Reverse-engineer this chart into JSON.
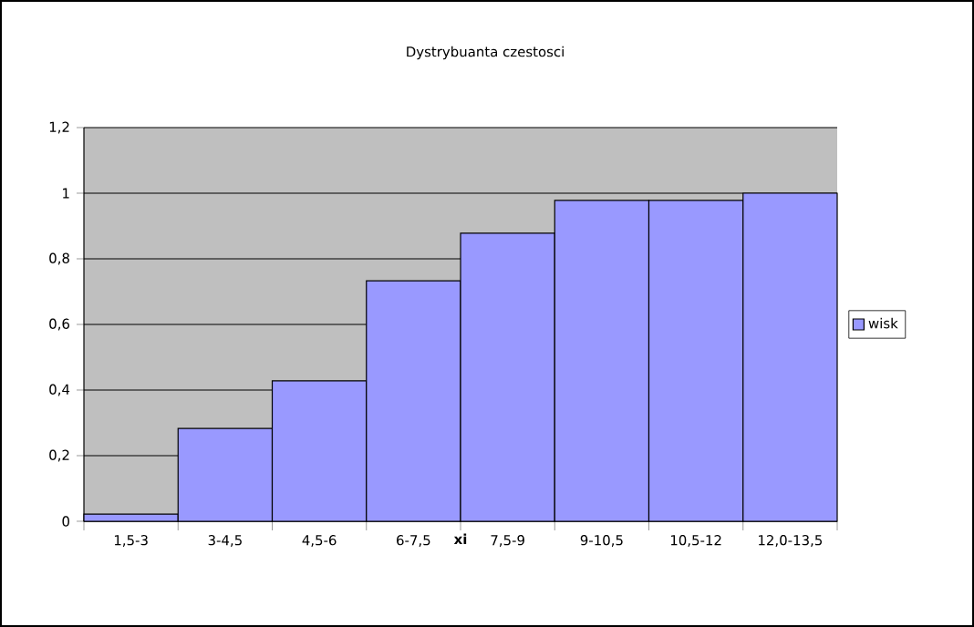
{
  "chart_data": {
    "type": "bar",
    "title": "Dystrybuanta czestosci",
    "xlabel": "xi",
    "categories": [
      "1,5-3",
      "3-4,5",
      "4,5-6",
      "6-7,5",
      "7,5-9",
      "9-10,5",
      "10,5-12",
      "12,0-13,5"
    ],
    "series": [
      {
        "name": "wisk",
        "color": "#9999ff",
        "values": [
          0.022,
          0.283,
          0.428,
          0.733,
          0.878,
          0.978,
          0.978,
          1.0
        ]
      }
    ],
    "ylim": [
      0,
      1.2
    ],
    "yticks": [
      0,
      {
        "value": 0.2,
        "label": "0,2"
      },
      {
        "value": 0.4,
        "label": "0,4"
      },
      {
        "value": 0.6,
        "label": "0,6"
      },
      {
        "value": 0.8,
        "label": "0,8"
      },
      1,
      {
        "value": 1.2,
        "label": "1,2"
      }
    ],
    "grid": "y",
    "legend": "right"
  }
}
